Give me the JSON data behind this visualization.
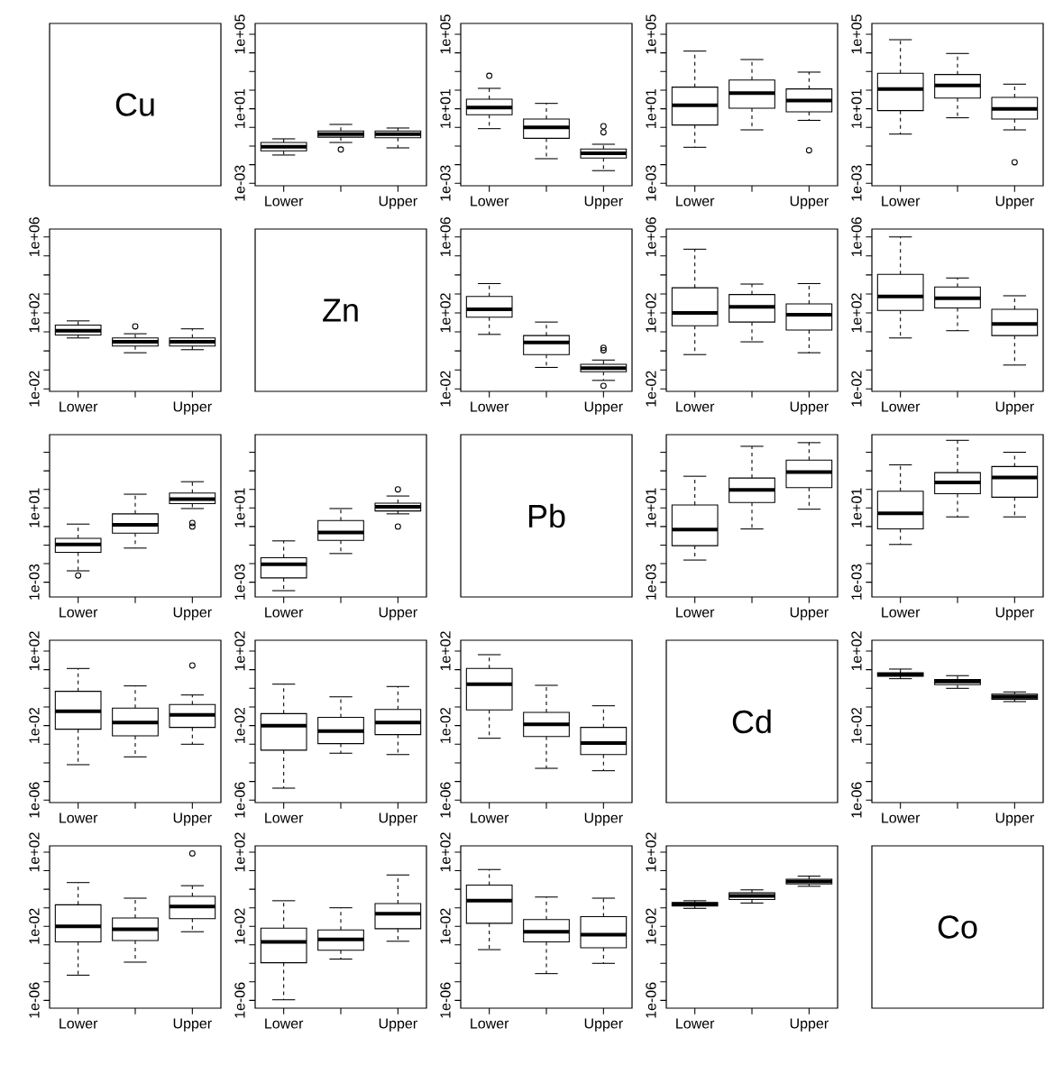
{
  "chart_data": [
    {
      "type": "other",
      "annotations": [
        "Cu"
      ]
    },
    {
      "type": "box",
      "log": true,
      "categories": [
        "Lower",
        null,
        "Upper"
      ],
      "ylim": [
        0.00074,
        380000
      ],
      "yticks": [
        {
          "value": 0.001,
          "label": "1e-03"
        },
        {
          "value": 0.01,
          "label": null
        },
        {
          "value": 0.1,
          "label": null
        },
        {
          "value": 1,
          "label": null
        },
        {
          "value": 10,
          "label": "1e+01"
        },
        {
          "value": 100,
          "label": null
        },
        {
          "value": 1000,
          "label": null
        },
        {
          "value": 10000,
          "label": null
        },
        {
          "value": 100000,
          "label": "1e+05"
        }
      ],
      "boxes": [
        {
          "low": 0.033,
          "q1": 0.055,
          "median": 0.093,
          "q3": 0.156,
          "high": 0.244
        },
        {
          "low": 0.156,
          "q1": 0.3,
          "median": 0.44,
          "q3": 0.64,
          "high": 1.45,
          "outliers": [
            0.065
          ]
        },
        {
          "low": 0.08,
          "q1": 0.28,
          "median": 0.44,
          "q3": 0.64,
          "high": 0.93
        }
      ]
    },
    {
      "type": "box",
      "log": true,
      "categories": [
        "Lower",
        null,
        "Upper"
      ],
      "ylim": [
        0.00074,
        380000
      ],
      "yticks": [
        {
          "value": 0.001,
          "label": "1e-03"
        },
        {
          "value": 0.01,
          "label": null
        },
        {
          "value": 0.1,
          "label": null
        },
        {
          "value": 1,
          "label": null
        },
        {
          "value": 10,
          "label": "1e+01"
        },
        {
          "value": 100,
          "label": null
        },
        {
          "value": 1000,
          "label": null
        },
        {
          "value": 10000,
          "label": null
        },
        {
          "value": 100000,
          "label": "1e+05"
        }
      ],
      "boxes": [
        {
          "low": 0.86,
          "q1": 4.8,
          "median": 11.6,
          "q3": 33,
          "high": 125,
          "outliers": [
            590
          ]
        },
        {
          "low": 0.021,
          "q1": 0.26,
          "median": 1.0,
          "q3": 2.8,
          "high": 19.5
        },
        {
          "low": 0.0048,
          "q1": 0.023,
          "median": 0.041,
          "q3": 0.069,
          "high": 0.125,
          "outliers": [
            0.55,
            1.16
          ]
        }
      ]
    },
    {
      "type": "box",
      "log": true,
      "categories": [
        "Lower",
        null,
        "Upper"
      ],
      "ylim": [
        0.00074,
        380000
      ],
      "yticks": [
        {
          "value": 0.001,
          "label": "1e-03"
        },
        {
          "value": 0.01,
          "label": null
        },
        {
          "value": 0.1,
          "label": null
        },
        {
          "value": 1,
          "label": null
        },
        {
          "value": 10,
          "label": "1e+01"
        },
        {
          "value": 100,
          "label": null
        },
        {
          "value": 1000,
          "label": null
        },
        {
          "value": 10000,
          "label": null
        },
        {
          "value": 100000,
          "label": "1e+05"
        }
      ],
      "boxes": [
        {
          "low": 0.086,
          "q1": 1.35,
          "median": 15.6,
          "q3": 145,
          "high": 12500
        },
        {
          "low": 0.74,
          "q1": 10.8,
          "median": 69,
          "q3": 350,
          "high": 4400
        },
        {
          "low": 2.4,
          "q1": 6.9,
          "median": 28,
          "q3": 116,
          "high": 930,
          "outliers": [
            0.059
          ]
        }
      ]
    },
    {
      "type": "box",
      "log": true,
      "categories": [
        "Lower",
        null,
        "Upper"
      ],
      "ylim": [
        0.00074,
        380000
      ],
      "yticks": [
        {
          "value": 0.001,
          "label": "1e-03"
        },
        {
          "value": 0.01,
          "label": null
        },
        {
          "value": 0.1,
          "label": null
        },
        {
          "value": 1,
          "label": null
        },
        {
          "value": 10,
          "label": "1e+01"
        },
        {
          "value": 100,
          "label": null
        },
        {
          "value": 1000,
          "label": null
        },
        {
          "value": 10000,
          "label": null
        },
        {
          "value": 100000,
          "label": "1e+05"
        }
      ],
      "boxes": [
        {
          "low": 0.44,
          "q1": 8.0,
          "median": 116,
          "q3": 800,
          "high": 51000
        },
        {
          "low": 3.3,
          "q1": 38,
          "median": 181,
          "q3": 690,
          "high": 9300
        },
        {
          "low": 0.74,
          "q1": 2.8,
          "median": 10,
          "q3": 41,
          "high": 210,
          "outliers": [
            0.0135
          ]
        }
      ]
    },
    {
      "type": "box",
      "log": true,
      "categories": [
        "Lower",
        null,
        "Upper"
      ],
      "ylim": [
        0.0074,
        2600000
      ],
      "yticks": [
        {
          "value": 0.01,
          "label": "1e-02"
        },
        {
          "value": 0.1,
          "label": null
        },
        {
          "value": 1,
          "label": null
        },
        {
          "value": 10,
          "label": null
        },
        {
          "value": 100,
          "label": "1e+02"
        },
        {
          "value": 1000,
          "label": null
        },
        {
          "value": 10000,
          "label": null
        },
        {
          "value": 100000,
          "label": null
        },
        {
          "value": 1000000,
          "label": "1e+06"
        }
      ],
      "boxes": [
        {
          "low": 4.8,
          "q1": 6.9,
          "median": 11.6,
          "q3": 23,
          "high": 38
        },
        {
          "low": 0.8,
          "q1": 1.8,
          "median": 3.0,
          "q3": 4.8,
          "high": 8.0,
          "outliers": [
            19.5
          ]
        },
        {
          "low": 1.16,
          "q1": 1.8,
          "median": 3.0,
          "q3": 4.8,
          "high": 14.5
        }
      ]
    },
    {
      "type": "other",
      "annotations": [
        "Zn"
      ]
    },
    {
      "type": "box",
      "log": true,
      "categories": [
        "Lower",
        null,
        "Upper"
      ],
      "ylim": [
        0.0074,
        2600000
      ],
      "yticks": [
        {
          "value": 0.01,
          "label": "1e-02"
        },
        {
          "value": 0.1,
          "label": null
        },
        {
          "value": 1,
          "label": null
        },
        {
          "value": 10,
          "label": null
        },
        {
          "value": 100,
          "label": "1e+02"
        },
        {
          "value": 1000,
          "label": null
        },
        {
          "value": 10000,
          "label": null
        },
        {
          "value": 100000,
          "label": null
        },
        {
          "value": 1000000,
          "label": "1e+06"
        }
      ],
      "boxes": [
        {
          "low": 7.4,
          "q1": 59,
          "median": 156,
          "q3": 740,
          "high": 3500
        },
        {
          "low": 0.135,
          "q1": 0.64,
          "median": 2.8,
          "q3": 6.4,
          "high": 33
        },
        {
          "low": 0.028,
          "q1": 0.08,
          "median": 0.125,
          "q3": 0.195,
          "high": 0.33,
          "outliers": [
            0.0145,
            1.08,
            1.45
          ]
        }
      ]
    },
    {
      "type": "box",
      "log": true,
      "categories": [
        "Lower",
        null,
        "Upper"
      ],
      "ylim": [
        0.0074,
        2600000
      ],
      "yticks": [
        {
          "value": 0.01,
          "label": "1e-02"
        },
        {
          "value": 0.1,
          "label": null
        },
        {
          "value": 1,
          "label": null
        },
        {
          "value": 10,
          "label": null
        },
        {
          "value": 100,
          "label": "1e+02"
        },
        {
          "value": 1000,
          "label": null
        },
        {
          "value": 10000,
          "label": null
        },
        {
          "value": 100000,
          "label": null
        },
        {
          "value": 1000000,
          "label": "1e+06"
        }
      ],
      "boxes": [
        {
          "low": 0.64,
          "q1": 21,
          "median": 100,
          "q3": 2100,
          "high": 226000
        },
        {
          "low": 3.0,
          "q1": 33,
          "median": 210,
          "q3": 930,
          "high": 3300
        },
        {
          "low": 0.8,
          "q1": 12.5,
          "median": 80,
          "q3": 300,
          "high": 3500
        }
      ]
    },
    {
      "type": "box",
      "log": true,
      "categories": [
        "Lower",
        null,
        "Upper"
      ],
      "ylim": [
        0.0074,
        2600000
      ],
      "yticks": [
        {
          "value": 0.01,
          "label": "1e-02"
        },
        {
          "value": 0.1,
          "label": null
        },
        {
          "value": 1,
          "label": null
        },
        {
          "value": 10,
          "label": null
        },
        {
          "value": 100,
          "label": "1e+02"
        },
        {
          "value": 1000,
          "label": null
        },
        {
          "value": 10000,
          "label": null
        },
        {
          "value": 100000,
          "label": null
        },
        {
          "value": 1000000,
          "label": "1e+06"
        }
      ],
      "boxes": [
        {
          "low": 4.8,
          "q1": 135,
          "median": 740,
          "q3": 10800,
          "high": 1000000
        },
        {
          "low": 11.6,
          "q1": 181,
          "median": 590,
          "q3": 2300,
          "high": 6900
        },
        {
          "low": 0.18,
          "q1": 6.4,
          "median": 26,
          "q3": 156,
          "high": 800
        }
      ]
    },
    {
      "type": "box",
      "log": true,
      "categories": [
        "Lower",
        null,
        "Upper"
      ],
      "ylim": [
        0.00016,
        89000
      ],
      "yticks": [
        {
          "value": 0.001,
          "label": "1e-03"
        },
        {
          "value": 0.01,
          "label": null
        },
        {
          "value": 0.1,
          "label": null
        },
        {
          "value": 1,
          "label": null
        },
        {
          "value": 10,
          "label": "1e+01"
        },
        {
          "value": 100,
          "label": null
        },
        {
          "value": 1000,
          "label": null
        },
        {
          "value": 10000,
          "label": null
        }
      ],
      "boxes": [
        {
          "low": 0.0041,
          "q1": 0.041,
          "median": 0.108,
          "q3": 0.23,
          "high": 1.35,
          "outliers": [
            0.0023
          ]
        },
        {
          "low": 0.069,
          "q1": 0.44,
          "median": 1.25,
          "q3": 4.8,
          "high": 55
        },
        {
          "low": 9.3,
          "q1": 17,
          "median": 30,
          "q3": 64,
          "high": 260,
          "outliers": [
            1.0,
            1.56
          ]
        }
      ]
    },
    {
      "type": "box",
      "log": true,
      "categories": [
        "Lower",
        null,
        "Upper"
      ],
      "ylim": [
        0.00016,
        89000
      ],
      "yticks": [
        {
          "value": 0.001,
          "label": "1e-03"
        },
        {
          "value": 0.01,
          "label": null
        },
        {
          "value": 0.1,
          "label": null
        },
        {
          "value": 1,
          "label": null
        },
        {
          "value": 10,
          "label": "1e+01"
        },
        {
          "value": 100,
          "label": null
        },
        {
          "value": 1000,
          "label": null
        },
        {
          "value": 10000,
          "label": null
        }
      ],
      "boxes": [
        {
          "low": 0.00035,
          "q1": 0.0017,
          "median": 0.0093,
          "q3": 0.021,
          "high": 0.168
        },
        {
          "low": 0.035,
          "q1": 0.18,
          "median": 0.48,
          "q3": 2.1,
          "high": 9.3
        },
        {
          "low": 4.8,
          "q1": 6.9,
          "median": 11.6,
          "q3": 18,
          "high": 44,
          "outliers": [
            1.0,
            100
          ]
        }
      ]
    },
    {
      "type": "other",
      "annotations": [
        "Pb"
      ]
    },
    {
      "type": "box",
      "log": true,
      "categories": [
        "Lower",
        null,
        "Upper"
      ],
      "ylim": [
        0.00016,
        89000
      ],
      "yticks": [
        {
          "value": 0.001,
          "label": "1e-03"
        },
        {
          "value": 0.01,
          "label": null
        },
        {
          "value": 0.1,
          "label": null
        },
        {
          "value": 1,
          "label": null
        },
        {
          "value": 10,
          "label": "1e+01"
        },
        {
          "value": 100,
          "label": null
        },
        {
          "value": 1000,
          "label": null
        },
        {
          "value": 10000,
          "label": null
        }
      ],
      "boxes": [
        {
          "low": 0.0156,
          "q1": 0.093,
          "median": 0.69,
          "q3": 14.5,
          "high": 510
        },
        {
          "low": 0.74,
          "q1": 19.5,
          "median": 93,
          "q3": 410,
          "high": 21000
        },
        {
          "low": 8.6,
          "q1": 125,
          "median": 860,
          "q3": 3800,
          "high": 33000
        }
      ]
    },
    {
      "type": "box",
      "log": true,
      "categories": [
        "Lower",
        null,
        "Upper"
      ],
      "ylim": [
        0.00016,
        89000
      ],
      "yticks": [
        {
          "value": 0.001,
          "label": "1e-03"
        },
        {
          "value": 0.01,
          "label": null
        },
        {
          "value": 0.1,
          "label": null
        },
        {
          "value": 1,
          "label": null
        },
        {
          "value": 10,
          "label": "1e+01"
        },
        {
          "value": 100,
          "label": null
        },
        {
          "value": 1000,
          "label": null
        },
        {
          "value": 10000,
          "label": null
        }
      ],
      "boxes": [
        {
          "low": 0.108,
          "q1": 0.74,
          "median": 5.1,
          "q3": 80,
          "high": 2100
        },
        {
          "low": 3.3,
          "q1": 59,
          "median": 240,
          "q3": 800,
          "high": 44000
        },
        {
          "low": 3.3,
          "q1": 38,
          "median": 440,
          "q3": 1700,
          "high": 10000
        }
      ]
    },
    {
      "type": "box",
      "log": true,
      "categories": [
        "Lower",
        null,
        "Upper"
      ],
      "ylim": [
        7.4e-07,
        380
      ],
      "yticks": [
        {
          "value": 1e-06,
          "label": "1e-06"
        },
        {
          "value": 1e-05,
          "label": null
        },
        {
          "value": 0.0001,
          "label": null
        },
        {
          "value": 0.001,
          "label": null
        },
        {
          "value": 0.01,
          "label": "1e-02"
        },
        {
          "value": 0.1,
          "label": null
        },
        {
          "value": 1,
          "label": null
        },
        {
          "value": 10,
          "label": null
        },
        {
          "value": 100,
          "label": "1e+02"
        }
      ],
      "boxes": [
        {
          "low": 8e-05,
          "q1": 0.0064,
          "median": 0.059,
          "q3": 0.69,
          "high": 11.6
        },
        {
          "low": 0.00021,
          "q1": 0.0028,
          "median": 0.0145,
          "q3": 0.086,
          "high": 1.35
        },
        {
          "low": 0.001,
          "q1": 0.008,
          "median": 0.038,
          "q3": 0.135,
          "high": 0.44,
          "outliers": [
            16.8
          ]
        }
      ]
    },
    {
      "type": "box",
      "log": true,
      "categories": [
        "Lower",
        null,
        "Upper"
      ],
      "ylim": [
        7.4e-07,
        380
      ],
      "yticks": [
        {
          "value": 1e-06,
          "label": "1e-06"
        },
        {
          "value": 1e-05,
          "label": null
        },
        {
          "value": 0.0001,
          "label": null
        },
        {
          "value": 0.001,
          "label": null
        },
        {
          "value": 0.01,
          "label": "1e-02"
        },
        {
          "value": 0.1,
          "label": null
        },
        {
          "value": 1,
          "label": null
        },
        {
          "value": 10,
          "label": null
        },
        {
          "value": 100,
          "label": "1e+02"
        }
      ],
      "boxes": [
        {
          "low": 4.4e-06,
          "q1": 0.00048,
          "median": 0.01,
          "q3": 0.044,
          "high": 1.68
        },
        {
          "low": 0.00033,
          "q1": 0.00108,
          "median": 0.0051,
          "q3": 0.028,
          "high": 0.35
        },
        {
          "low": 0.00028,
          "q1": 0.0033,
          "median": 0.0145,
          "q3": 0.074,
          "high": 1.25
        }
      ]
    },
    {
      "type": "box",
      "log": true,
      "categories": [
        "Lower",
        null,
        "Upper"
      ],
      "ylim": [
        7.4e-07,
        380
      ],
      "yticks": [
        {
          "value": 1e-06,
          "label": "1e-06"
        },
        {
          "value": 1e-05,
          "label": null
        },
        {
          "value": 0.0001,
          "label": null
        },
        {
          "value": 0.001,
          "label": null
        },
        {
          "value": 0.01,
          "label": "1e-02"
        },
        {
          "value": 0.1,
          "label": null
        },
        {
          "value": 1,
          "label": null
        },
        {
          "value": 10,
          "label": null
        },
        {
          "value": 100,
          "label": "1e+02"
        }
      ],
      "boxes": [
        {
          "low": 0.0021,
          "q1": 0.069,
          "median": 1.68,
          "q3": 11.6,
          "high": 64
        },
        {
          "low": 5.1e-05,
          "q1": 0.0026,
          "median": 0.0116,
          "q3": 0.051,
          "high": 1.45
        },
        {
          "low": 3.8e-05,
          "q1": 0.00028,
          "median": 0.00116,
          "q3": 0.008,
          "high": 0.116
        }
      ]
    },
    {
      "type": "other",
      "annotations": [
        "Cd"
      ]
    },
    {
      "type": "box",
      "log": true,
      "categories": [
        "Lower",
        null,
        "Upper"
      ],
      "ylim": [
        7.4e-07,
        380
      ],
      "yticks": [
        {
          "value": 1e-06,
          "label": "1e-06"
        },
        {
          "value": 1e-05,
          "label": null
        },
        {
          "value": 0.0001,
          "label": null
        },
        {
          "value": 0.001,
          "label": null
        },
        {
          "value": 0.01,
          "label": "1e-02"
        },
        {
          "value": 0.1,
          "label": null
        },
        {
          "value": 1,
          "label": null
        },
        {
          "value": 10,
          "label": null
        },
        {
          "value": 100,
          "label": "1e+02"
        }
      ],
      "boxes": [
        {
          "low": 3.3,
          "q1": 4.4,
          "median": 5.5,
          "q3": 6.9,
          "high": 10.8
        },
        {
          "low": 1.0,
          "q1": 1.56,
          "median": 2.3,
          "q3": 3.0,
          "high": 4.8
        },
        {
          "low": 0.195,
          "q1": 0.26,
          "median": 0.35,
          "q3": 0.48,
          "high": 0.64
        }
      ]
    },
    {
      "type": "box",
      "log": true,
      "categories": [
        "Lower",
        null,
        "Upper"
      ],
      "ylim": [
        3.8e-07,
        220
      ],
      "yticks": [
        {
          "value": 1e-06,
          "label": "1e-06"
        },
        {
          "value": 1e-05,
          "label": null
        },
        {
          "value": 0.0001,
          "label": null
        },
        {
          "value": 0.001,
          "label": null
        },
        {
          "value": 0.01,
          "label": "1e-02"
        },
        {
          "value": 0.1,
          "label": null
        },
        {
          "value": 1,
          "label": null
        },
        {
          "value": 10,
          "label": null
        },
        {
          "value": 100,
          "label": "1e+02"
        }
      ],
      "boxes": [
        {
          "low": 2.3e-05,
          "q1": 0.00145,
          "median": 0.01,
          "q3": 0.145,
          "high": 2.3
        },
        {
          "low": 0.000116,
          "q1": 0.0017,
          "median": 0.0069,
          "q3": 0.028,
          "high": 0.33
        },
        {
          "low": 0.0051,
          "q1": 0.026,
          "median": 0.116,
          "q3": 0.41,
          "high": 1.56,
          "outliers": [
            86
          ]
        }
      ]
    },
    {
      "type": "box",
      "log": true,
      "categories": [
        "Lower",
        null,
        "Upper"
      ],
      "ylim": [
        3.8e-07,
        220
      ],
      "yticks": [
        {
          "value": 1e-06,
          "label": "1e-06"
        },
        {
          "value": 1e-05,
          "label": null
        },
        {
          "value": 0.0001,
          "label": null
        },
        {
          "value": 0.001,
          "label": null
        },
        {
          "value": 0.01,
          "label": "1e-02"
        },
        {
          "value": 0.1,
          "label": null
        },
        {
          "value": 1,
          "label": null
        },
        {
          "value": 10,
          "label": null
        },
        {
          "value": 100,
          "label": "1e+02"
        }
      ],
      "boxes": [
        {
          "low": 1.08e-06,
          "q1": 0.000108,
          "median": 0.00145,
          "q3": 0.008,
          "high": 0.24
        },
        {
          "low": 0.00017,
          "q1": 0.00051,
          "median": 0.00195,
          "q3": 0.0064,
          "high": 0.1
        },
        {
          "low": 0.00156,
          "q1": 0.0074,
          "median": 0.048,
          "q3": 0.168,
          "high": 5.9
        }
      ]
    },
    {
      "type": "box",
      "log": true,
      "categories": [
        "Lower",
        null,
        "Upper"
      ],
      "ylim": [
        3.8e-07,
        220
      ],
      "yticks": [
        {
          "value": 1e-06,
          "label": "1e-06"
        },
        {
          "value": 1e-05,
          "label": null
        },
        {
          "value": 0.0001,
          "label": null
        },
        {
          "value": 0.001,
          "label": null
        },
        {
          "value": 0.01,
          "label": "1e-02"
        },
        {
          "value": 0.1,
          "label": null
        },
        {
          "value": 1,
          "label": null
        },
        {
          "value": 10,
          "label": null
        },
        {
          "value": 100,
          "label": "1e+02"
        }
      ],
      "boxes": [
        {
          "low": 0.00055,
          "q1": 0.0145,
          "median": 0.24,
          "q3": 1.68,
          "high": 11.6
        },
        {
          "low": 2.8e-05,
          "q1": 0.00145,
          "median": 0.0051,
          "q3": 0.023,
          "high": 0.38
        },
        {
          "low": 0.0001,
          "q1": 0.00069,
          "median": 0.0035,
          "q3": 0.033,
          "high": 0.33
        }
      ]
    },
    {
      "type": "box",
      "log": true,
      "categories": [
        "Lower",
        null,
        "Upper"
      ],
      "ylim": [
        3.8e-07,
        220
      ],
      "yticks": [
        {
          "value": 1e-06,
          "label": "1e-06"
        },
        {
          "value": 1e-05,
          "label": null
        },
        {
          "value": 0.0001,
          "label": null
        },
        {
          "value": 0.001,
          "label": null
        },
        {
          "value": 0.01,
          "label": "1e-02"
        },
        {
          "value": 0.1,
          "label": null
        },
        {
          "value": 1,
          "label": null
        },
        {
          "value": 10,
          "label": null
        },
        {
          "value": 100,
          "label": "1e+02"
        }
      ],
      "boxes": [
        {
          "low": 0.093,
          "q1": 0.125,
          "median": 0.156,
          "q3": 0.195,
          "high": 0.24
        },
        {
          "low": 0.18,
          "q1": 0.28,
          "median": 0.44,
          "q3": 0.64,
          "high": 0.93
        },
        {
          "low": 1.45,
          "q1": 1.95,
          "median": 2.6,
          "q3": 3.5,
          "high": 5.1
        }
      ]
    },
    {
      "type": "other",
      "annotations": [
        "Co"
      ]
    }
  ]
}
